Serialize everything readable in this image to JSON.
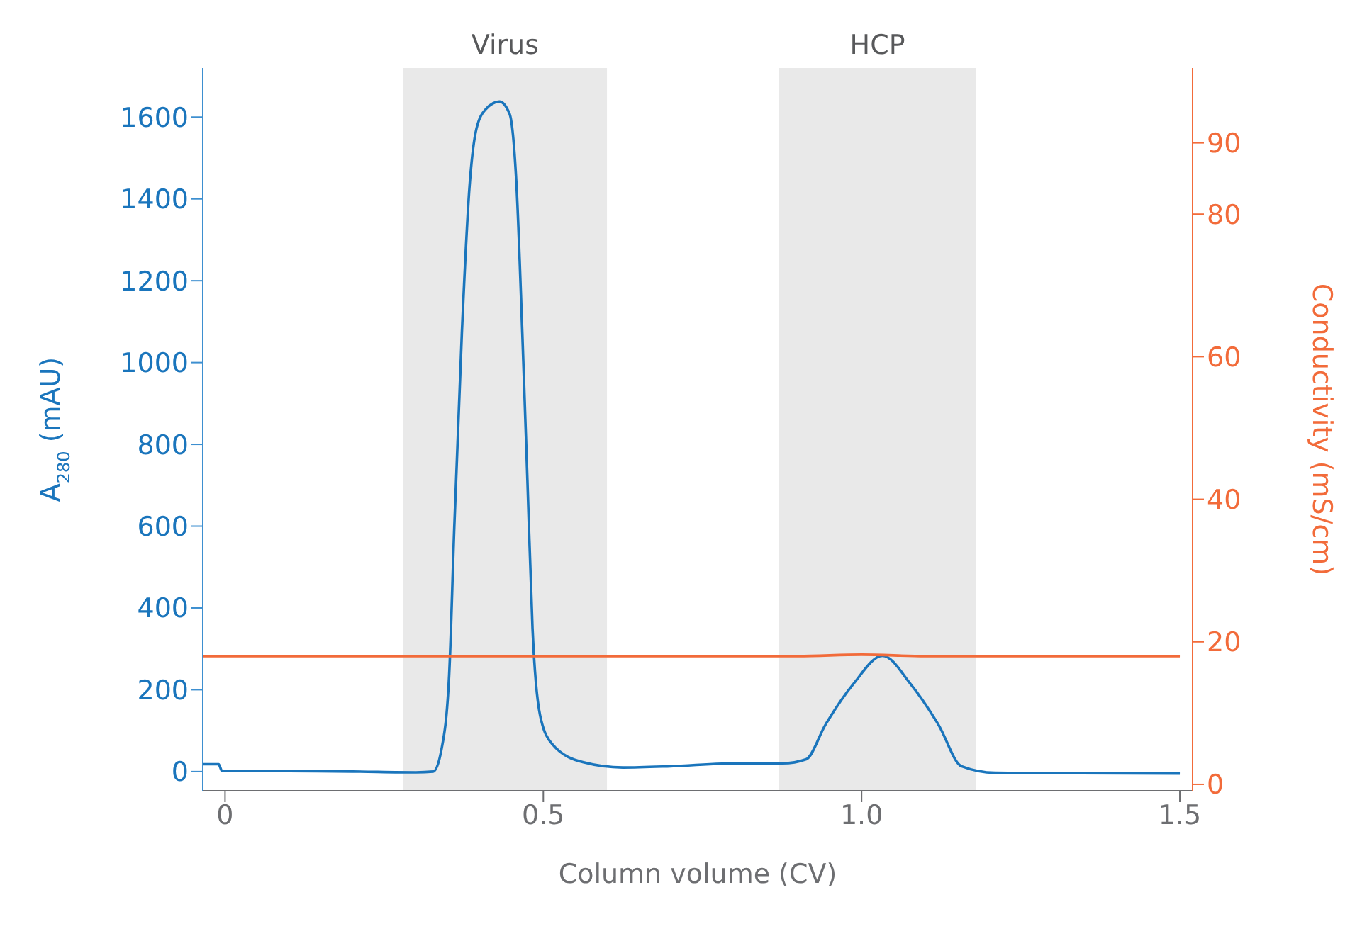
{
  "chart_data": {
    "type": "line",
    "xlabel": "Column volume (CV)",
    "ylabel": "A$_{280}$ (mAU)",
    "y2label": "Conductivity (mS/cm)",
    "xlim": [
      -0.035,
      1.52
    ],
    "xticks": [
      0,
      0.5,
      {
        "value": 1,
        "label": "1.0"
      },
      1.5
    ],
    "ylim": [
      -47,
      1720
    ],
    "yticks": [
      0,
      200,
      400,
      600,
      800,
      1000,
      1200,
      1400,
      1600
    ],
    "y2lim": [
      -0.9,
      100.5
    ],
    "y2ticks": [
      0,
      20,
      40,
      60,
      80,
      90
    ],
    "grid": false,
    "legend": false,
    "marker": "none",
    "line_style": "solid",
    "bands": [
      {
        "axis": "x",
        "from": 0.28,
        "to": 0.6,
        "label": "Virus",
        "color": "#e9e9e9"
      },
      {
        "axis": "x",
        "from": 0.87,
        "to": 1.18,
        "label": "HCP",
        "color": "#e9e9e9"
      }
    ],
    "series": [
      {
        "color": "#1a75bc",
        "x": [
          -0.035,
          -0.01,
          -0.005,
          0.1,
          0.2,
          0.3,
          0.327,
          0.34,
          0.352,
          0.36,
          0.372,
          0.384,
          0.395,
          0.41,
          0.431,
          0.447,
          0.458,
          0.467,
          0.475,
          0.483,
          0.495,
          0.514,
          0.562,
          0.625,
          0.7,
          0.8,
          0.876,
          0.913,
          0.943,
          0.987,
          1.033,
          1.077,
          1.121,
          1.157,
          1.21,
          1.3,
          1.5
        ],
        "values": [
          18,
          18,
          2,
          1,
          0,
          -2,
          0,
          54,
          234,
          592,
          1071,
          1429,
          1572,
          1620,
          1638,
          1608,
          1429,
          1071,
          713,
          351,
          137,
          67,
          23,
          10,
          13,
          20,
          20,
          30,
          114,
          214,
          283,
          214,
          114,
          13,
          -3,
          -4,
          -5
        ]
      },
      {
        "color": "#f26b3a",
        "axis": "y2",
        "x": [
          -0.035,
          0.5,
          0.9,
          1.0,
          1.1,
          1.5
        ],
        "values": [
          18,
          18,
          18,
          18.2,
          18,
          18
        ]
      }
    ]
  }
}
